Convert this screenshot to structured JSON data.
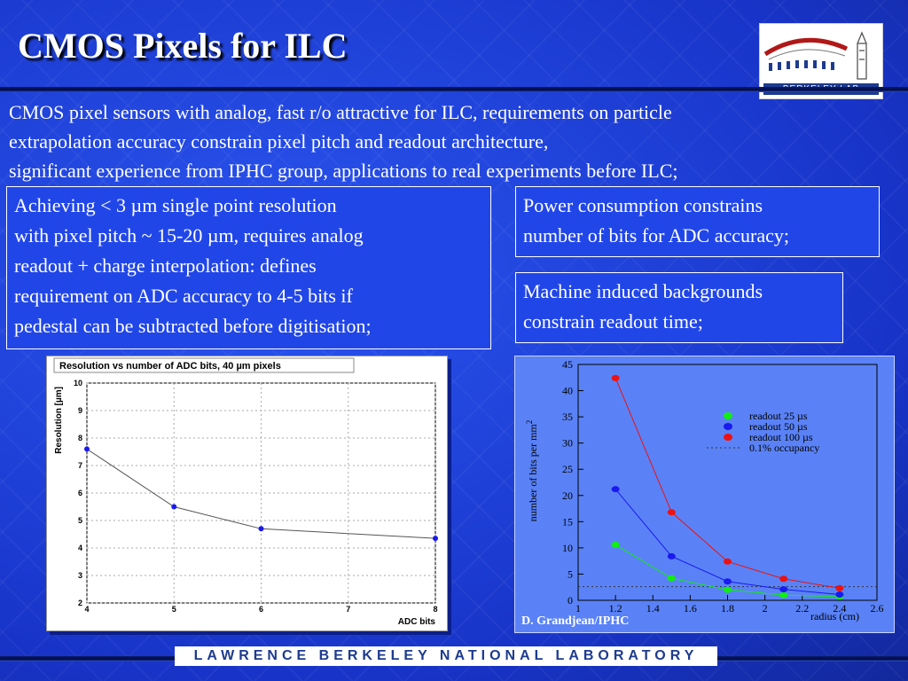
{
  "slide": {
    "title": "CMOS Pixels for ILC",
    "logo_text": "BERKELEY LAB",
    "intro": [
      "CMOS pixel sensors with analog, fast r/o attractive for ILC, requirements on particle",
      "extrapolation accuracy constrain pixel pitch and readout architecture,",
      "significant experience from IPHC group, applications to real experiments before ILC;"
    ],
    "box_left": [
      "Achieving < 3 µm single point resolution",
      "with pixel pitch ~ 15-20 µm, requires analog",
      "readout + charge interpolation: defines",
      "requirement on ADC accuracy to 4-5 bits if",
      "pedestal can be subtracted before digitisation;"
    ],
    "box_power": [
      "Power consumption constrains",
      "number of bits for ADC accuracy;"
    ],
    "box_machine": [
      "Machine induced backgrounds",
      "constrain readout time;"
    ],
    "credit": "D. Grandjean/IPHC",
    "footer": "LAWRENCE BERKELEY NATIONAL LABORATORY"
  },
  "chart_data": [
    {
      "type": "line",
      "title": "Resolution vs number of ADC bits, 40 µm pixels",
      "xlabel": "ADC bits",
      "ylabel": "Resolution [µm]",
      "xlim": [
        4,
        8
      ],
      "ylim": [
        2,
        10
      ],
      "xticks": [
        "4",
        "5",
        "6",
        "7",
        "8"
      ],
      "yticks": [
        "2",
        "3",
        "4",
        "5",
        "6",
        "7",
        "8",
        "9",
        "10"
      ],
      "grid": true,
      "colors": {
        "line": "#555555",
        "marker": "#1a1aee"
      },
      "x": [
        4,
        5,
        6,
        8
      ],
      "y": [
        7.6,
        5.5,
        4.7,
        4.35
      ]
    },
    {
      "type": "line",
      "xlabel": "radius (cm)",
      "ylabel": "number of bits per mm",
      "ylabel_sup": "2",
      "xlim": [
        1,
        2.6
      ],
      "ylim": [
        0,
        45
      ],
      "xticks": [
        "1",
        "1.2",
        "1.4",
        "1.6",
        "1.8",
        "2",
        "2.2",
        "2.4",
        "2.6"
      ],
      "yticks": [
        "0",
        "5",
        "10",
        "15",
        "20",
        "25",
        "30",
        "35",
        "40",
        "45"
      ],
      "legend": "top-right",
      "x": [
        1.2,
        1.5,
        1.8,
        2.1,
        2.4
      ],
      "series": [
        {
          "name": "readout 25 µs",
          "color": "#11ee11",
          "values": [
            10.6,
            4.2,
            2.0,
            1.0,
            0.7
          ]
        },
        {
          "name": "readout 50 µs",
          "color": "#1a1aee",
          "values": [
            21.2,
            8.4,
            3.6,
            2.1,
            1.1
          ]
        },
        {
          "name": "readout 100 µs",
          "color": "#ee1111",
          "values": [
            42.4,
            16.8,
            7.4,
            4.1,
            2.3
          ]
        }
      ],
      "reference": {
        "name": "0.1% occupancy",
        "value": 2.6,
        "style": "dashed"
      }
    }
  ]
}
